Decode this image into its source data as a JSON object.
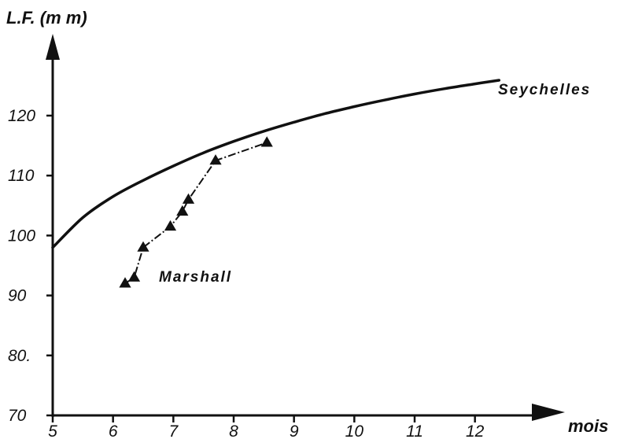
{
  "chart_data": {
    "type": "line",
    "title": "",
    "ylabel": "L.F. (m m)",
    "xlabel": "mois",
    "xlim": [
      5,
      12.8
    ],
    "ylim": [
      70,
      128
    ],
    "x_ticks": [
      5,
      6,
      7,
      8,
      9,
      10,
      11,
      12
    ],
    "y_ticks": [
      70,
      80,
      90,
      100,
      110,
      120
    ],
    "x_tick_labels": [
      "5",
      "6",
      "7",
      "8",
      "9",
      "10",
      "11",
      "12"
    ],
    "y_tick_labels": [
      "70",
      "80.",
      "90",
      "100",
      "110",
      "120"
    ],
    "grid": false,
    "legend": "none",
    "series": [
      {
        "name": "Seychelles",
        "style": "curve",
        "color": "#111111",
        "x": [
          5,
          5.5,
          6,
          6.5,
          7,
          7.5,
          8,
          8.5,
          9,
          9.5,
          10,
          10.5,
          11,
          11.5,
          12,
          12.4
        ],
        "y": [
          98,
          103,
          106.5,
          109.2,
          111.6,
          113.8,
          115.7,
          117.4,
          118.9,
          120.3,
          121.5,
          122.6,
          123.6,
          124.5,
          125.3,
          125.9
        ]
      },
      {
        "name": "Marshall",
        "style": "dash-dot with triangles",
        "color": "#111111",
        "x": [
          6.2,
          6.35,
          6.5,
          6.95,
          7.15,
          7.25,
          7.7,
          8.55
        ],
        "y": [
          92,
          93,
          98,
          101.5,
          104,
          106,
          112.5,
          115.5
        ]
      }
    ]
  }
}
